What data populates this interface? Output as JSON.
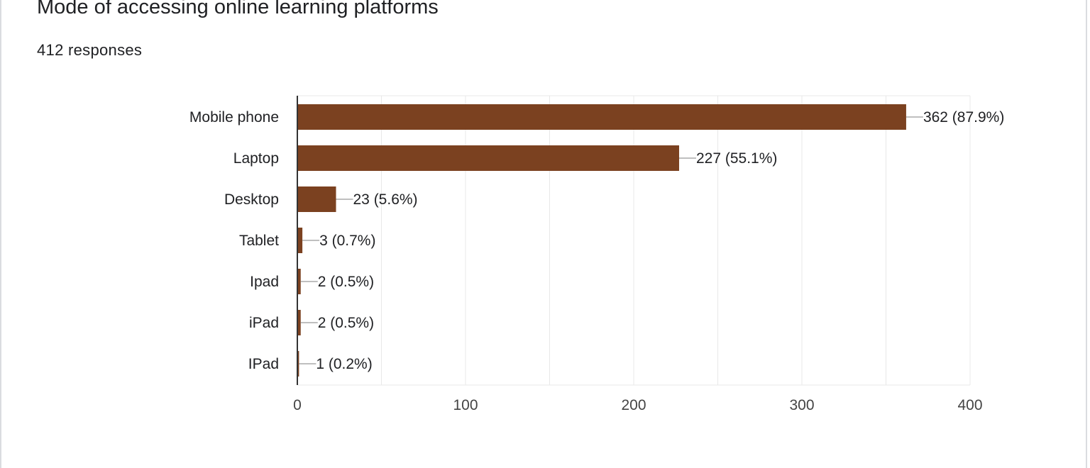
{
  "header": {
    "title": "Mode of accessing online learning platforms",
    "subtitle": "412 responses"
  },
  "colors": {
    "bar": "#7b4120",
    "grid": "#e8e8e8",
    "axis": "#333333",
    "leader": "#999999"
  },
  "chart_data": {
    "type": "bar",
    "orientation": "horizontal",
    "categories": [
      "Mobile phone",
      "Laptop",
      "Desktop",
      "Tablet",
      "Ipad",
      "iPad",
      "IPad"
    ],
    "values": [
      362,
      227,
      23,
      3,
      2,
      2,
      1
    ],
    "value_labels": [
      "362 (87.9%)",
      "227 (55.1%)",
      "23 (5.6%)",
      "3 (0.7%)",
      "2 (0.5%)",
      "2 (0.5%)",
      "1 (0.2%)"
    ],
    "xlim": [
      0,
      400
    ],
    "x_ticks": [
      0,
      100,
      200,
      300,
      400
    ],
    "x_tick_labels": [
      "0",
      "100",
      "200",
      "300",
      "400"
    ],
    "grid": true
  }
}
